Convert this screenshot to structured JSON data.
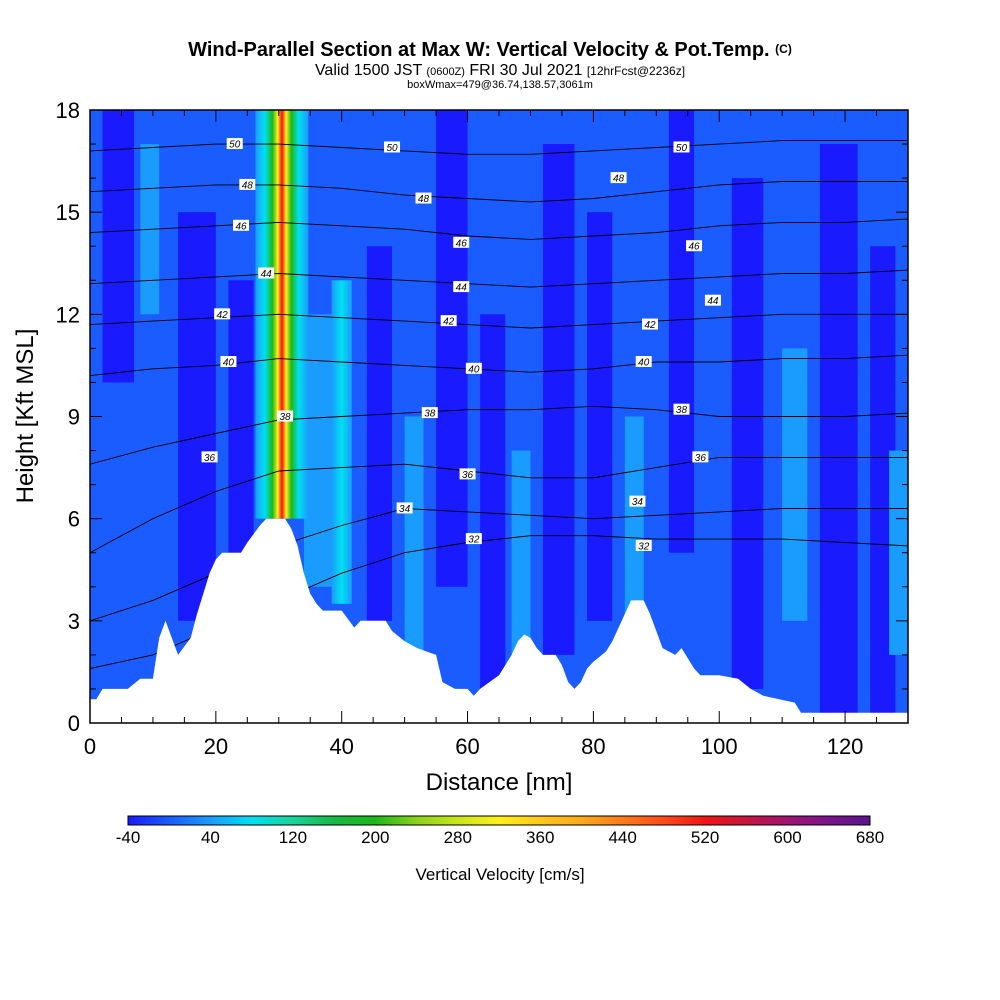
{
  "title": {
    "main": "Wind-Parallel Section at Max W: Vertical Velocity & Pot.Temp.",
    "copyright": "(C)",
    "valid_prefix": "Valid 1500 JST",
    "valid_utc": "(0600Z)",
    "valid_date": "FRI 30 Jul 2021",
    "forecast": "[12hrFcst@2236z]",
    "boxwmax": "boxWmax=479@36.74,138.57,3061m"
  },
  "chart_data": {
    "type": "heatmap",
    "xlabel": "Distance [nm]",
    "ylabel": "Height [Kft MSL]",
    "xlim": [
      0,
      130
    ],
    "ylim": [
      0,
      18
    ],
    "x_ticks": [
      "0",
      "20",
      "40",
      "60",
      "80",
      "100",
      "120"
    ],
    "y_ticks": [
      "0",
      "3",
      "6",
      "9",
      "12",
      "15",
      "18"
    ],
    "colorbar": {
      "title": "Vertical Velocity [cm/s]",
      "tick_labels": [
        "-40",
        "40",
        "120",
        "200",
        "280",
        "360",
        "440",
        "520",
        "600",
        "680"
      ],
      "levels": [
        -40,
        680
      ],
      "colors": [
        "#1a1aff",
        "#1a5cff",
        "#1a9cff",
        "#00e0f0",
        "#19d49a",
        "#19b844",
        "#1ab81a",
        "#8ad21a",
        "#c8e61a",
        "#fff01a",
        "#ffc81a",
        "#ffaa1a",
        "#ff7a1a",
        "#ff4a1a",
        "#f01414",
        "#c81440",
        "#a01470",
        "#7a148c",
        "#5a148c"
      ]
    },
    "terrain_kft": [
      [
        0,
        0.7
      ],
      [
        1,
        0.7
      ],
      [
        2,
        1.0
      ],
      [
        6,
        1.0
      ],
      [
        8,
        1.3
      ],
      [
        10,
        1.3
      ],
      [
        11,
        2.5
      ],
      [
        12,
        3.0
      ],
      [
        13,
        2.5
      ],
      [
        14,
        2.0
      ],
      [
        16,
        2.5
      ],
      [
        17,
        3.2
      ],
      [
        18,
        3.8
      ],
      [
        19,
        4.4
      ],
      [
        20,
        4.8
      ],
      [
        21,
        5.0
      ],
      [
        24,
        5.0
      ],
      [
        25,
        5.3
      ],
      [
        27,
        5.8
      ],
      [
        28,
        6.0
      ],
      [
        31,
        6.0
      ],
      [
        32,
        5.7
      ],
      [
        33,
        5.2
      ],
      [
        34,
        4.4
      ],
      [
        35,
        3.8
      ],
      [
        36,
        3.5
      ],
      [
        37,
        3.3
      ],
      [
        40,
        3.3
      ],
      [
        42,
        2.8
      ],
      [
        43,
        3.0
      ],
      [
        47,
        3.0
      ],
      [
        48,
        2.7
      ],
      [
        50,
        2.4
      ],
      [
        52,
        2.2
      ],
      [
        55,
        2.0
      ],
      [
        56,
        1.2
      ],
      [
        58,
        1.0
      ],
      [
        60,
        1.0
      ],
      [
        61,
        0.8
      ],
      [
        62,
        1.0
      ],
      [
        65,
        1.4
      ],
      [
        67,
        2.0
      ],
      [
        68,
        2.4
      ],
      [
        69,
        2.6
      ],
      [
        70,
        2.5
      ],
      [
        71,
        2.2
      ],
      [
        72,
        2.0
      ],
      [
        74,
        2.0
      ],
      [
        75,
        1.7
      ],
      [
        76,
        1.2
      ],
      [
        77,
        1.0
      ],
      [
        78,
        1.2
      ],
      [
        79,
        1.6
      ],
      [
        80,
        1.8
      ],
      [
        82,
        2.1
      ],
      [
        83,
        2.4
      ],
      [
        84,
        2.8
      ],
      [
        85,
        3.2
      ],
      [
        86,
        3.6
      ],
      [
        88,
        3.6
      ],
      [
        89,
        3.2
      ],
      [
        90,
        2.7
      ],
      [
        91,
        2.2
      ],
      [
        93,
        2.0
      ],
      [
        94,
        2.2
      ],
      [
        95,
        1.9
      ],
      [
        96,
        1.6
      ],
      [
        97,
        1.4
      ],
      [
        100,
        1.4
      ],
      [
        103,
        1.3
      ],
      [
        105,
        1.0
      ],
      [
        107,
        0.8
      ],
      [
        112,
        0.6
      ],
      [
        113,
        0.3
      ],
      [
        130,
        0.3
      ]
    ],
    "theta_contours": [
      {
        "label": "32",
        "y": [
          1.6,
          2.0,
          2.8,
          3.6,
          4.4,
          5.0,
          5.3,
          5.5,
          5.5,
          5.4,
          5.4,
          5.4,
          5.3,
          5.2
        ]
      },
      {
        "label": "34",
        "y": [
          3.0,
          3.6,
          4.4,
          5.2,
          5.8,
          6.3,
          6.2,
          6.1,
          6.0,
          6.1,
          6.2,
          6.3,
          6.3,
          6.3
        ]
      },
      {
        "label": "36",
        "y": [
          5.0,
          6.0,
          6.8,
          7.4,
          7.5,
          7.6,
          7.4,
          7.2,
          7.2,
          7.5,
          7.8,
          7.8,
          7.8,
          7.8
        ]
      },
      {
        "label": "38",
        "y": [
          7.6,
          8.1,
          8.5,
          8.9,
          9.0,
          9.1,
          9.2,
          9.2,
          9.3,
          9.2,
          9.0,
          9.0,
          9.0,
          9.1
        ]
      },
      {
        "label": "40",
        "y": [
          10.2,
          10.4,
          10.5,
          10.7,
          10.6,
          10.5,
          10.4,
          10.3,
          10.4,
          10.6,
          10.6,
          10.7,
          10.7,
          10.8
        ]
      },
      {
        "label": "42",
        "y": [
          11.7,
          11.8,
          11.9,
          12.0,
          11.9,
          11.8,
          11.7,
          11.6,
          11.7,
          11.8,
          11.9,
          12.0,
          12.0,
          12.0
        ]
      },
      {
        "label": "44",
        "y": [
          12.9,
          13.0,
          13.1,
          13.2,
          13.1,
          13.0,
          12.9,
          12.8,
          12.9,
          13.0,
          13.1,
          13.2,
          13.2,
          13.3
        ]
      },
      {
        "label": "46",
        "y": [
          14.4,
          14.5,
          14.6,
          14.7,
          14.6,
          14.5,
          14.3,
          14.2,
          14.3,
          14.4,
          14.6,
          14.7,
          14.7,
          14.8
        ]
      },
      {
        "label": "48",
        "y": [
          15.6,
          15.7,
          15.8,
          15.8,
          15.7,
          15.5,
          15.4,
          15.3,
          15.4,
          15.6,
          15.8,
          15.9,
          15.9,
          15.9
        ]
      },
      {
        "label": "50",
        "y": [
          16.8,
          16.9,
          17.0,
          17.0,
          16.9,
          16.8,
          16.7,
          16.7,
          16.8,
          16.9,
          17.0,
          17.1,
          17.1,
          17.1
        ]
      }
    ],
    "theta_label_points": [
      {
        "label": "50",
        "x": 23,
        "y": 17.0
      },
      {
        "label": "48",
        "x": 25,
        "y": 15.8
      },
      {
        "label": "46",
        "x": 24,
        "y": 14.6
      },
      {
        "label": "44",
        "x": 28,
        "y": 13.2
      },
      {
        "label": "42",
        "x": 21,
        "y": 12.0
      },
      {
        "label": "40",
        "x": 22,
        "y": 10.6
      },
      {
        "label": "38",
        "x": 31,
        "y": 9.0
      },
      {
        "label": "36",
        "x": 19,
        "y": 7.8
      },
      {
        "label": "50",
        "x": 48,
        "y": 16.9
      },
      {
        "label": "48",
        "x": 53,
        "y": 15.4
      },
      {
        "label": "46",
        "x": 59,
        "y": 14.1
      },
      {
        "label": "44",
        "x": 59,
        "y": 12.8
      },
      {
        "label": "42",
        "x": 57,
        "y": 11.8
      },
      {
        "label": "40",
        "x": 61,
        "y": 10.4
      },
      {
        "label": "38",
        "x": 54,
        "y": 9.1
      },
      {
        "label": "36",
        "x": 60,
        "y": 7.3
      },
      {
        "label": "34",
        "x": 50,
        "y": 6.3
      },
      {
        "label": "32",
        "x": 61,
        "y": 5.4
      },
      {
        "label": "50",
        "x": 94,
        "y": 16.9
      },
      {
        "label": "48",
        "x": 84,
        "y": 16.0
      },
      {
        "label": "46",
        "x": 96,
        "y": 14.0
      },
      {
        "label": "44",
        "x": 99,
        "y": 12.4
      },
      {
        "label": "42",
        "x": 89,
        "y": 11.7
      },
      {
        "label": "40",
        "x": 88,
        "y": 10.6
      },
      {
        "label": "38",
        "x": 94,
        "y": 9.2
      },
      {
        "label": "36",
        "x": 97,
        "y": 7.8
      },
      {
        "label": "34",
        "x": 87,
        "y": 6.5
      },
      {
        "label": "32",
        "x": 88,
        "y": 5.2
      }
    ],
    "updraft_cores": [
      {
        "x": 30.5,
        "ymin": 6.0,
        "ymax": 18,
        "max_cm_s": 479
      },
      {
        "x": 40,
        "ymin": 3.5,
        "ymax": 13.0,
        "max_cm_s": 120
      }
    ],
    "grid": false
  }
}
